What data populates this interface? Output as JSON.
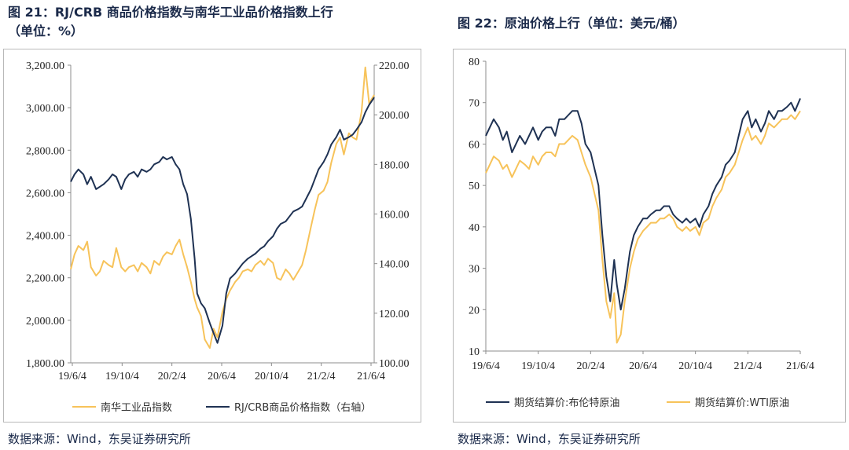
{
  "left": {
    "title_line1": "图 21：RJ/CRB 商品价格指数与南华工业品价格指数上行",
    "title_line2": "（单位：%）",
    "source": "数据来源：Wind，东吴证券研究所",
    "colors": {
      "nanhua": "#f7c35a",
      "rjcrb": "#1f3253"
    },
    "chart_data": {
      "type": "line",
      "x_ticks": [
        "19/6/4",
        "19/10/4",
        "20/2/4",
        "20/6/4",
        "20/10/4",
        "21/2/4",
        "21/6/4"
      ],
      "y_left_ticks": [
        "3,200.00",
        "3,000.00",
        "2,800.00",
        "2,600.00",
        "2,400.00",
        "2,200.00",
        "2,000.00",
        "1,800.00"
      ],
      "y_left_range": [
        1800,
        3200
      ],
      "y_right_ticks": [
        "220.00",
        "200.00",
        "180.00",
        "160.00",
        "140.00",
        "120.00",
        "100.00"
      ],
      "y_right_range": [
        100,
        220
      ],
      "x_range": [
        0,
        24
      ],
      "series": [
        {
          "name": "南华工业品指数",
          "axis": "left",
          "x": [
            0,
            0.3,
            0.6,
            1,
            1.3,
            1.6,
            2,
            2.3,
            2.6,
            3,
            3.3,
            3.6,
            4,
            4.3,
            4.6,
            5,
            5.3,
            5.6,
            6,
            6.3,
            6.6,
            7,
            7.3,
            7.6,
            8,
            8.3,
            8.6,
            8.9,
            9.2,
            9.5,
            9.8,
            10,
            10.3,
            10.6,
            11,
            11.3,
            11.6,
            12,
            12.3,
            12.6,
            13,
            13.3,
            13.6,
            14,
            14.3,
            14.6,
            15,
            15.3,
            15.6,
            16,
            16.3,
            16.6,
            17,
            17.3,
            17.6,
            18,
            18.3,
            18.6,
            19,
            19.3,
            19.6,
            20,
            20.3,
            20.6,
            21,
            21.3,
            21.6,
            22,
            22.3,
            22.6,
            23,
            23.3,
            23.6,
            24
          ],
          "y": [
            2240,
            2310,
            2350,
            2330,
            2370,
            2250,
            2210,
            2230,
            2280,
            2260,
            2250,
            2340,
            2250,
            2230,
            2250,
            2260,
            2230,
            2270,
            2250,
            2220,
            2280,
            2260,
            2300,
            2320,
            2310,
            2350,
            2380,
            2310,
            2250,
            2180,
            2100,
            2060,
            2020,
            1910,
            1870,
            1960,
            1920,
            2040,
            2100,
            2140,
            2180,
            2200,
            2230,
            2240,
            2230,
            2260,
            2280,
            2260,
            2290,
            2270,
            2200,
            2190,
            2240,
            2220,
            2190,
            2230,
            2260,
            2330,
            2440,
            2520,
            2590,
            2610,
            2650,
            2740,
            2830,
            2860,
            2780,
            2880,
            2860,
            2850,
            2980,
            3190,
            3020,
            3060
          ]
        },
        {
          "name": "RJ/CRB商品价格指数（右轴）",
          "axis": "right",
          "x": [
            0,
            0.3,
            0.6,
            1,
            1.3,
            1.6,
            2,
            2.3,
            2.6,
            3,
            3.3,
            3.6,
            4,
            4.3,
            4.6,
            5,
            5.3,
            5.6,
            6,
            6.3,
            6.6,
            7,
            7.3,
            7.6,
            8,
            8.3,
            8.6,
            8.9,
            9.2,
            9.5,
            9.8,
            10,
            10.3,
            10.6,
            11,
            11.3,
            11.6,
            12,
            12.3,
            12.6,
            13,
            13.3,
            13.6,
            14,
            14.3,
            14.6,
            15,
            15.3,
            15.6,
            16,
            16.3,
            16.6,
            17,
            17.3,
            17.6,
            18,
            18.3,
            18.6,
            19,
            19.3,
            19.6,
            20,
            20.3,
            20.6,
            21,
            21.3,
            21.6,
            22,
            22.3,
            22.6,
            23,
            23.3,
            23.6,
            24
          ],
          "y": [
            173,
            176,
            178,
            176,
            172,
            175,
            170,
            171,
            172,
            174,
            176,
            175,
            170,
            174,
            176,
            177,
            175,
            178,
            177,
            178,
            180,
            181,
            183,
            182,
            183,
            180,
            178,
            172,
            168,
            158,
            142,
            128,
            124,
            122,
            116,
            112,
            108,
            115,
            128,
            134,
            136,
            138,
            140,
            142,
            143,
            144,
            146,
            147,
            149,
            151,
            154,
            156,
            157,
            159,
            161,
            162,
            163,
            166,
            170,
            174,
            178,
            181,
            184,
            188,
            191,
            194,
            190,
            191,
            192,
            194,
            197,
            201,
            204,
            207
          ]
        }
      ]
    }
  },
  "right": {
    "title": "图 22：原油价格上行（单位：美元/桶）",
    "source": "数据来源：Wind，东吴证券研究所",
    "colors": {
      "brent": "#1f3253",
      "wti": "#f7c35a"
    },
    "chart_data": {
      "type": "line",
      "x_ticks": [
        "19/6/4",
        "19/10/4",
        "20/2/4",
        "20/6/4",
        "20/10/4",
        "21/2/4",
        "21/6/4"
      ],
      "y_ticks": [
        "80",
        "70",
        "60",
        "50",
        "40",
        "30",
        "20",
        "10"
      ],
      "y_range": [
        10,
        80
      ],
      "x_range": [
        0,
        24
      ],
      "series": [
        {
          "name": "期货结算价:布伦特原油",
          "x": [
            0,
            0.3,
            0.6,
            1,
            1.3,
            1.6,
            2,
            2.3,
            2.6,
            3,
            3.3,
            3.6,
            4,
            4.3,
            4.6,
            5,
            5.3,
            5.6,
            6,
            6.3,
            6.6,
            7,
            7.3,
            7.6,
            8,
            8.3,
            8.6,
            8.9,
            9.2,
            9.5,
            9.8,
            10,
            10.3,
            10.6,
            11,
            11.3,
            11.6,
            12,
            12.3,
            12.6,
            13,
            13.3,
            13.6,
            14,
            14.3,
            14.6,
            15,
            15.3,
            15.6,
            16,
            16.3,
            16.6,
            17,
            17.3,
            17.6,
            18,
            18.3,
            18.6,
            19,
            19.3,
            19.6,
            20,
            20.3,
            20.6,
            21,
            21.3,
            21.6,
            22,
            22.3,
            22.6,
            23,
            23.3,
            23.6,
            24
          ],
          "y": [
            62,
            64,
            66,
            64,
            61,
            63,
            58,
            60,
            62,
            60,
            62,
            64,
            61,
            63,
            64,
            64,
            62,
            66,
            66,
            67,
            68,
            68,
            65,
            60,
            58,
            54,
            50,
            38,
            28,
            22,
            32,
            26,
            20,
            25,
            34,
            38,
            40,
            42,
            42,
            43,
            44,
            44,
            45,
            45,
            43,
            42,
            41,
            42,
            41,
            42,
            40,
            43,
            45,
            48,
            50,
            52,
            55,
            56,
            58,
            62,
            66,
            68,
            64,
            66,
            63,
            65,
            68,
            66,
            68,
            68,
            69,
            70,
            68,
            71
          ]
        },
        {
          "name": "期货结算价:WTI原油",
          "x": [
            0,
            0.3,
            0.6,
            1,
            1.3,
            1.6,
            2,
            2.3,
            2.6,
            3,
            3.3,
            3.6,
            4,
            4.3,
            4.6,
            5,
            5.3,
            5.6,
            6,
            6.3,
            6.6,
            7,
            7.3,
            7.6,
            8,
            8.3,
            8.6,
            8.9,
            9.2,
            9.5,
            9.8,
            10,
            10.3,
            10.6,
            11,
            11.3,
            11.6,
            12,
            12.3,
            12.6,
            13,
            13.3,
            13.6,
            14,
            14.3,
            14.6,
            15,
            15.3,
            15.6,
            16,
            16.3,
            16.6,
            17,
            17.3,
            17.6,
            18,
            18.3,
            18.6,
            19,
            19.3,
            19.6,
            20,
            20.3,
            20.6,
            21,
            21.3,
            21.6,
            22,
            22.3,
            22.6,
            23,
            23.3,
            23.6,
            24
          ],
          "y": [
            53,
            55,
            57,
            56,
            54,
            55,
            52,
            54,
            56,
            55,
            54,
            57,
            55,
            57,
            58,
            58,
            57,
            60,
            60,
            61,
            62,
            61,
            58,
            55,
            52,
            48,
            44,
            32,
            22,
            18,
            24,
            12,
            14,
            22,
            30,
            34,
            37,
            39,
            40,
            41,
            41,
            42,
            42,
            43,
            42,
            40,
            39,
            40,
            39,
            40,
            38,
            41,
            42,
            45,
            47,
            49,
            52,
            53,
            55,
            58,
            61,
            64,
            61,
            62,
            60,
            62,
            65,
            64,
            65,
            66,
            66,
            67,
            66,
            68
          ]
        }
      ]
    }
  }
}
